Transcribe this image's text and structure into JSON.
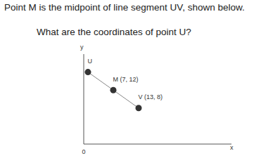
{
  "lines": [
    "Point M is the midpoint of line segment UV, shown below.",
    "What are the coordinates of point U?"
  ],
  "chart_data": {
    "type": "scatter",
    "x_label": "x",
    "y_label": "y",
    "x": [
      1,
      7,
      13
    ],
    "values": [
      16,
      12,
      8
    ],
    "point_labels": [
      "U",
      "M (7, 12)",
      "V (13, 8)"
    ],
    "color": "#333333",
    "marker": "circle",
    "line_style": "solid",
    "xlim": [
      0,
      35
    ],
    "ylim": [
      0,
      20
    ],
    "xticks": [
      0
    ],
    "yticks": [
      0
    ],
    "tick_labels": "x",
    "grid": false
  }
}
